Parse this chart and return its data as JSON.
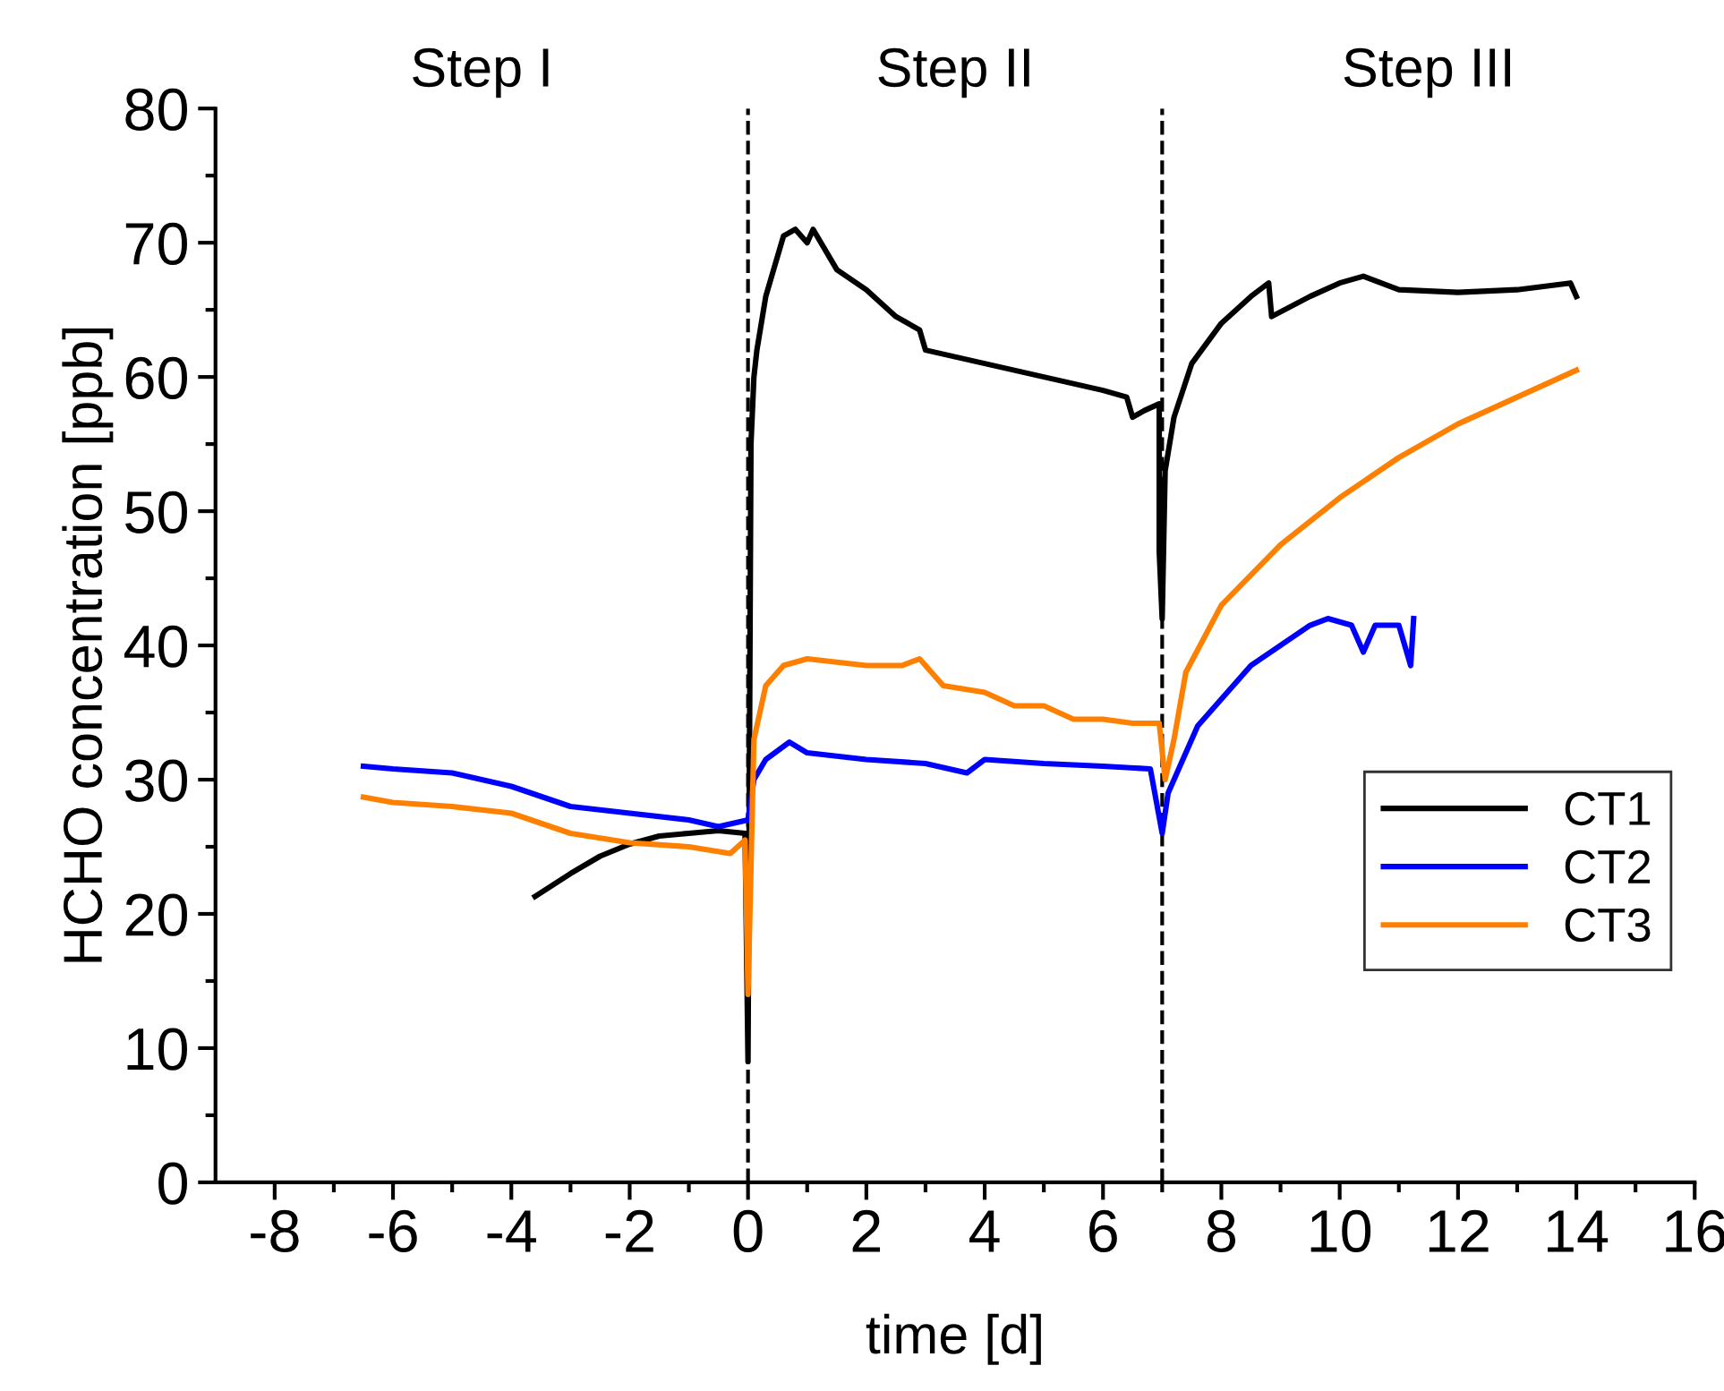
{
  "chart_data": {
    "type": "line",
    "xlabel": "time [d]",
    "ylabel": "HCHO concentration [ppb]",
    "xlim": [
      -9,
      16
    ],
    "ylim": [
      0,
      80
    ],
    "xticks": [
      -8,
      {
        "value": -7,
        "label": null
      },
      -6,
      {
        "value": -5,
        "label": null
      },
      -4,
      {
        "value": -3,
        "label": null
      },
      -2,
      {
        "value": -1,
        "label": null
      },
      0,
      {
        "value": 1,
        "label": null
      },
      2,
      {
        "value": 3,
        "label": null
      },
      4,
      {
        "value": 5,
        "label": null
      },
      6,
      {
        "value": 7,
        "label": null
      },
      8,
      {
        "value": 9,
        "label": null
      },
      10,
      {
        "value": 11,
        "label": null
      },
      12,
      {
        "value": 13,
        "label": null
      },
      14,
      {
        "value": 15,
        "label": null
      },
      16
    ],
    "yticks": [
      0,
      {
        "value": 5,
        "label": null
      },
      10,
      {
        "value": 15,
        "label": null
      },
      20,
      {
        "value": 25,
        "label": null
      },
      30,
      {
        "value": 35,
        "label": null
      },
      40,
      {
        "value": 45,
        "label": null
      },
      50,
      {
        "value": 55,
        "label": null
      },
      60,
      {
        "value": 65,
        "label": null
      },
      70,
      {
        "value": 75,
        "label": null
      },
      80
    ],
    "grid": false,
    "legend": "center right",
    "marker": "none",
    "line_style": "solid",
    "ref_lines": [
      {
        "axis": "x",
        "value": 0,
        "label": null,
        "color": "#000000",
        "line_style": "dashed"
      },
      {
        "axis": "x",
        "value": 7,
        "label": null,
        "color": "#000000",
        "line_style": "dashed"
      }
    ],
    "annotations": [
      "Step I",
      "Step II",
      "Step III"
    ],
    "series": [
      {
        "name": "CT1",
        "color": "#000000",
        "x": [
          -3.6,
          -3,
          -2.5,
          -2,
          -1.5,
          -1,
          -0.5,
          -0.05,
          0,
          0.05,
          0.1,
          0.15,
          0.3,
          0.6,
          0.8,
          1.0,
          1.1,
          1.5,
          2,
          2.5,
          2.9,
          3.0,
          4,
          5,
          6,
          6.4,
          6.5,
          6.7,
          6.95,
          6.95,
          7.0,
          7.05,
          7.2,
          7.5,
          8,
          8.5,
          8.8,
          8.85,
          9.5,
          10,
          10.4,
          11,
          12,
          13,
          13.9,
          14
        ],
        "values": [
          21.3,
          23,
          24.3,
          25.2,
          25.8,
          26,
          26.2,
          26,
          9,
          55,
          60,
          62,
          66,
          70.5,
          71,
          70,
          71,
          68,
          66.5,
          64.5,
          63.5,
          62,
          61,
          60,
          59,
          58.5,
          57,
          57.5,
          58,
          47,
          42,
          53,
          57,
          61,
          64,
          66,
          67,
          64.5,
          66,
          67,
          67.5,
          66.5,
          66.3,
          66.5,
          67,
          66
        ]
      },
      {
        "name": "CT2",
        "color": "#0000ff",
        "x": [
          -6.5,
          -6,
          -5,
          -4,
          -3,
          -2,
          -1,
          -0.5,
          0,
          0.1,
          0.3,
          0.7,
          1,
          2,
          3,
          3.7,
          4,
          5,
          6,
          6.8,
          7.0,
          7.1,
          7.3,
          7.6,
          8,
          8.5,
          9,
          9.5,
          9.8,
          10.2,
          10.4,
          10.6,
          11,
          11.2,
          11.25
        ],
        "values": [
          31,
          30.8,
          30.5,
          29.5,
          28,
          27.5,
          27,
          26.5,
          27,
          30,
          31.5,
          32.8,
          32,
          31.5,
          31.2,
          30.5,
          31.5,
          31.2,
          31,
          30.8,
          26,
          29,
          31,
          34,
          36,
          38.5,
          40,
          41.5,
          42,
          41.5,
          39.5,
          41.5,
          41.5,
          38.5,
          42
        ]
      },
      {
        "name": "CT3",
        "color": "#ff8000",
        "x": [
          -6.5,
          -6,
          -5,
          -4,
          -3,
          -2,
          -1,
          -0.3,
          -0.05,
          0,
          0.1,
          0.3,
          0.6,
          1,
          2,
          2.6,
          2.9,
          3.3,
          4,
          4.5,
          5,
          5.5,
          6,
          6.5,
          6.95,
          7.05,
          7.2,
          7.4,
          8,
          9,
          10,
          11,
          12,
          13,
          14
        ],
        "values": [
          28.7,
          28.3,
          28,
          27.5,
          26,
          25.3,
          25,
          24.5,
          25.5,
          14,
          33,
          37,
          38.5,
          39,
          38.5,
          38.5,
          39,
          37,
          36.5,
          35.5,
          35.5,
          34.5,
          34.5,
          34.2,
          34.2,
          30,
          33,
          38,
          43,
          47.5,
          51,
          54,
          56.5,
          58.5,
          60.5
        ]
      }
    ]
  }
}
